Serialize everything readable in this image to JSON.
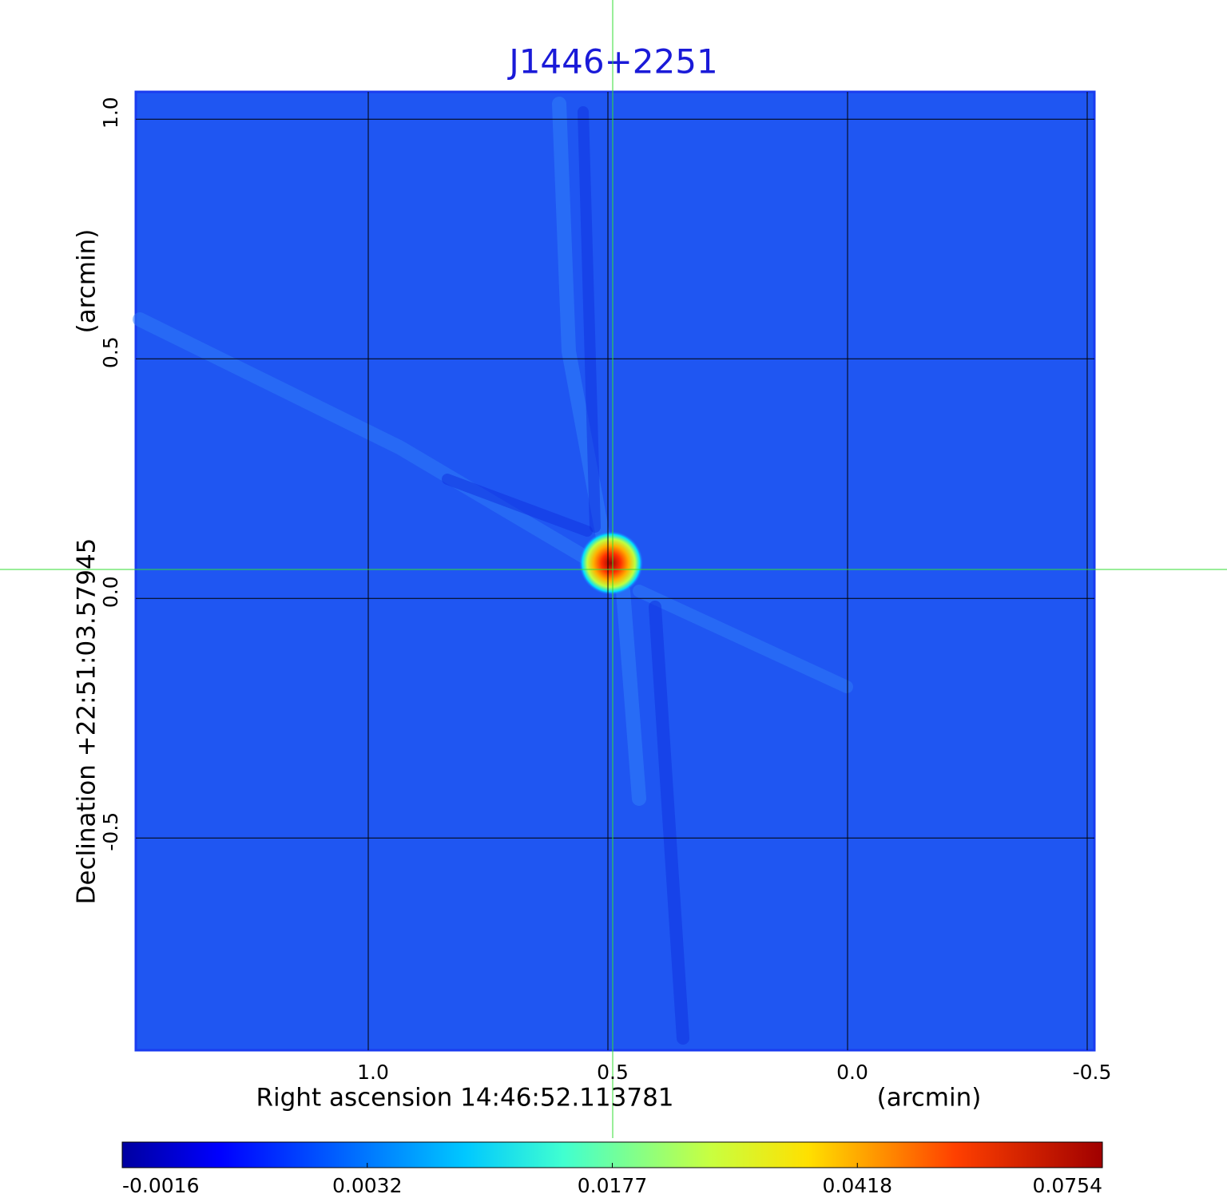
{
  "chart_data": {
    "type": "image",
    "title": "J1446+2251",
    "xlabel": "Right ascension  14:46:52.113781",
    "xunit": "(arcmin)",
    "ylabel": "Declination  +22:51:03.57945",
    "yunit": "(arcmin)",
    "xlim": [
      1.485,
      -0.515
    ],
    "xticks": [
      {
        "value": 1,
        "label": "1.0"
      },
      0.5,
      {
        "value": 0,
        "label": "0.0"
      },
      -0.5
    ],
    "ylim": [
      -0.943,
      1.057
    ],
    "yticks": [
      {
        "value": 1,
        "label": "1.0"
      },
      0.5,
      {
        "value": 0,
        "label": "0.0"
      },
      -0.5
    ],
    "grid": true,
    "colorbar_ticks": [
      -0.0016,
      0.0032,
      0.0177,
      0.0418,
      0.0754
    ]
  }
}
